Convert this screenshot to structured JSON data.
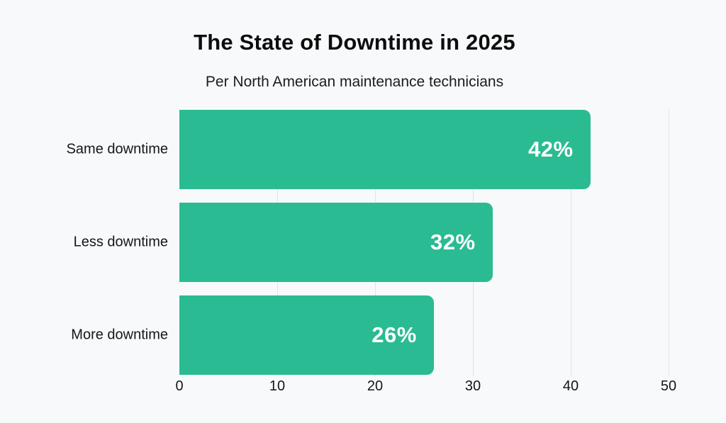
{
  "page": {
    "background_color": "#f8f9fb"
  },
  "header": {
    "title": "The State of Downtime in 2025",
    "subtitle": "Per North American maintenance technicians"
  },
  "chart_data": {
    "type": "bar",
    "orientation": "horizontal",
    "title": "The State of Downtime in 2025",
    "subtitle": "Per North American maintenance technicians",
    "categories": [
      "Same downtime",
      "Less downtime",
      "More downtime"
    ],
    "values": [
      42,
      32,
      26
    ],
    "value_labels": [
      "42%",
      "32%",
      "26%"
    ],
    "xlabel": "",
    "ylabel": "",
    "xlim": [
      0,
      50
    ],
    "xticks": [
      0,
      10,
      20,
      30,
      40,
      50
    ],
    "grid": "vertical-only",
    "legend": "none",
    "bar_color": "#2abb92",
    "value_label_color": "#ffffff",
    "gridline_color": "#e1e3e6"
  }
}
